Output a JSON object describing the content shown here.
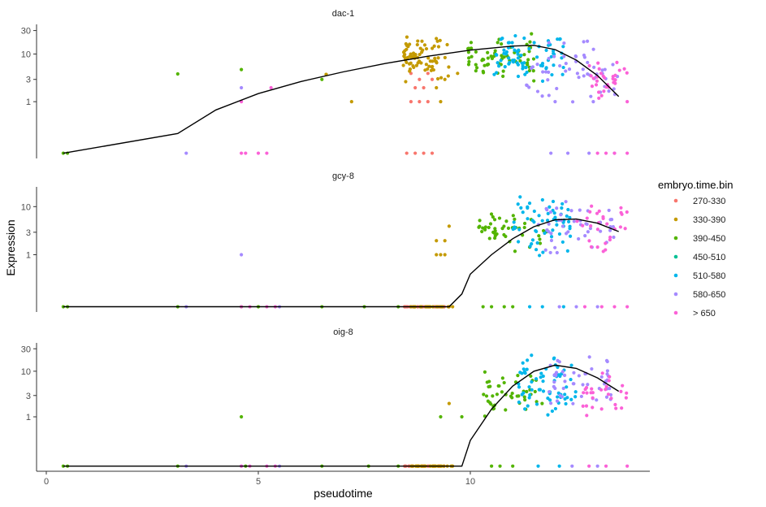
{
  "chart_data": {
    "type": "scatter",
    "xlabel": "pseudotime",
    "ylabel": "Expression",
    "xlim": [
      -0.5,
      14.1
    ],
    "x_ticks": [
      0,
      5,
      10
    ],
    "y_scale": "log10(y+0.1)",
    "legend": {
      "title": "embryo.time.bin",
      "position": "right",
      "entries": [
        {
          "label": "270-330",
          "color": "#F8766D"
        },
        {
          "label": "330-390",
          "color": "#C49A00"
        },
        {
          "label": "390-450",
          "color": "#53B400"
        },
        {
          "label": "450-510",
          "color": "#00C094"
        },
        {
          "label": "510-580",
          "color": "#00B6EB"
        },
        {
          "label": "580-650",
          "color": "#A58AFF"
        },
        {
          "label": "> 650",
          "color": "#FB61D7"
        }
      ]
    },
    "panels": [
      {
        "name": "dac-1",
        "y_ticks": [
          1,
          3,
          10,
          30
        ],
        "ylim": [
          0,
          40
        ],
        "trend": {
          "x": [
            0.4,
            3.1,
            4.0,
            5.0,
            6.0,
            7.0,
            8.0,
            9.0,
            10.0,
            11.0,
            11.5,
            12.0,
            12.5,
            13.0,
            13.5
          ],
          "y": [
            0.0,
            0.15,
            0.65,
            1.5,
            2.7,
            4.3,
            6.4,
            9.0,
            12.0,
            14.5,
            15.0,
            12.3,
            7.5,
            3.6,
            1.3
          ]
        },
        "clusters": [
          {
            "bin": "390-450",
            "points": [
              [
                0.4,
                0
              ],
              [
                0.5,
                0
              ],
              [
                3.1,
                3.9
              ],
              [
                4.6,
                4.8
              ],
              [
                6.5,
                3.0
              ],
              [
                6.6,
                3.8
              ]
            ]
          },
          {
            "bin": "580-650",
            "points": [
              [
                3.3,
                0
              ],
              [
                4.6,
                2.0
              ]
            ]
          },
          {
            "bin": "> 650",
            "points": [
              [
                4.6,
                0
              ],
              [
                4.7,
                0
              ],
              [
                4.6,
                1.0
              ],
              [
                5.0,
                0
              ],
              [
                5.2,
                0
              ],
              [
                5.3,
                2.0
              ]
            ]
          },
          {
            "bin": "330-390",
            "points": [
              [
                7.2,
                1.0
              ],
              [
                6.6,
                3.8
              ]
            ]
          },
          {
            "bin": "270-330",
            "points": [
              [
                8.5,
                0
              ],
              [
                8.7,
                0
              ],
              [
                8.9,
                0
              ],
              [
                9.1,
                0
              ],
              [
                8.6,
                1.0
              ],
              [
                8.8,
                1.0
              ],
              [
                9.0,
                1.0
              ],
              [
                8.7,
                2.0
              ],
              [
                8.9,
                2.0
              ],
              [
                8.8,
                3.0
              ],
              [
                9.1,
                3.0
              ],
              [
                8.6,
                4.0
              ],
              [
                9.0,
                4.0
              ]
            ]
          },
          {
            "bin": "330-390",
            "cluster": {
              "x": [
                8.4,
                9.5
              ],
              "y": [
                2.5,
                27
              ],
              "n": 75,
              "seed": 11
            }
          },
          {
            "bin": "330-390",
            "points": [
              [
                9.3,
                1.0
              ],
              [
                9.2,
                2.0
              ],
              [
                9.4,
                3.0
              ],
              [
                9.7,
                4.0
              ]
            ]
          },
          {
            "bin": "390-450",
            "cluster": {
              "x": [
                9.9,
                11.5
              ],
              "y": [
                2.5,
                28
              ],
              "n": 65,
              "seed": 23
            }
          },
          {
            "bin": "510-580",
            "cluster": {
              "x": [
                10.5,
                12.2
              ],
              "y": [
                2.5,
                30
              ],
              "n": 75,
              "seed": 37
            }
          },
          {
            "bin": "580-650",
            "cluster": {
              "x": [
                11.3,
                13.5
              ],
              "y": [
                0.9,
                20
              ],
              "n": 55,
              "seed": 41
            }
          },
          {
            "bin": "580-650",
            "points": [
              [
                11.9,
                0
              ],
              [
                12.3,
                0
              ],
              [
                12.8,
                0
              ],
              [
                13.4,
                0
              ],
              [
                12.0,
                1.0
              ],
              [
                12.9,
                1.0
              ]
            ]
          },
          {
            "bin": "> 650",
            "cluster": {
              "x": [
                12.8,
                13.7
              ],
              "y": [
                0.9,
                14
              ],
              "n": 30,
              "seed": 53
            }
          },
          {
            "bin": "> 650",
            "points": [
              [
                13.0,
                0
              ],
              [
                13.2,
                0
              ],
              [
                13.4,
                0
              ],
              [
                13.7,
                0
              ],
              [
                13.7,
                1.0
              ]
            ]
          }
        ]
      },
      {
        "name": "gcy-8",
        "y_ticks": [
          1,
          3,
          10
        ],
        "ylim": [
          0,
          25
        ],
        "trend": {
          "x": [
            0.4,
            9.5,
            9.8,
            10.0,
            10.5,
            11.0,
            11.5,
            12.0,
            12.5,
            13.0,
            13.5
          ],
          "y": [
            0,
            0,
            0.08,
            0.35,
            1.0,
            2.2,
            3.9,
            5.4,
            5.6,
            4.6,
            3.1
          ]
        },
        "clusters": [
          {
            "bin": "390-450",
            "points": [
              [
                0.4,
                0
              ],
              [
                0.5,
                0
              ],
              [
                3.1,
                0
              ],
              [
                4.6,
                0
              ],
              [
                5.0,
                0
              ],
              [
                6.5,
                0
              ],
              [
                7.5,
                0
              ],
              [
                8.3,
                0
              ]
            ]
          },
          {
            "bin": "580-650",
            "points": [
              [
                3.3,
                0
              ],
              [
                4.6,
                1.0
              ],
              [
                5.5,
                0
              ]
            ]
          },
          {
            "bin": "> 650",
            "points": [
              [
                4.6,
                0
              ],
              [
                4.8,
                0
              ],
              [
                5.2,
                0
              ],
              [
                5.4,
                0
              ]
            ]
          },
          {
            "bin": "270-330",
            "cluster": {
              "x": [
                8.4,
                9.4
              ],
              "y": [
                0,
                0.05
              ],
              "n": 30,
              "seed": 7
            }
          },
          {
            "bin": "330-390",
            "cluster": {
              "x": [
                8.6,
                9.6
              ],
              "y": [
                0,
                0.05
              ],
              "n": 30,
              "seed": 9
            }
          },
          {
            "bin": "330-390",
            "points": [
              [
                9.2,
                1.0
              ],
              [
                9.3,
                1.0
              ],
              [
                9.4,
                1.0
              ],
              [
                9.2,
                2.0
              ],
              [
                9.4,
                2.0
              ],
              [
                9.5,
                4.0
              ]
            ]
          },
          {
            "bin": "390-450",
            "cluster": {
              "x": [
                10.2,
                11.8
              ],
              "y": [
                0.9,
                10
              ],
              "n": 45,
              "seed": 19
            }
          },
          {
            "bin": "390-450",
            "points": [
              [
                10.3,
                0
              ],
              [
                10.5,
                0
              ],
              [
                10.8,
                0
              ],
              [
                11.0,
                0
              ]
            ]
          },
          {
            "bin": "510-580",
            "cluster": {
              "x": [
                11.0,
                12.4
              ],
              "y": [
                0.9,
                18
              ],
              "n": 60,
              "seed": 29
            }
          },
          {
            "bin": "510-580",
            "points": [
              [
                11.4,
                0
              ],
              [
                11.7,
                0
              ],
              [
                12.2,
                0
              ]
            ]
          },
          {
            "bin": "580-650",
            "cluster": {
              "x": [
                11.6,
                13.4
              ],
              "y": [
                0.9,
                16
              ],
              "n": 45,
              "seed": 31
            }
          },
          {
            "bin": "580-650",
            "points": [
              [
                12.1,
                0
              ],
              [
                12.5,
                0
              ],
              [
                13.0,
                0
              ]
            ]
          },
          {
            "bin": "> 650",
            "cluster": {
              "x": [
                12.5,
                13.7
              ],
              "y": [
                0.9,
                15
              ],
              "n": 28,
              "seed": 47
            }
          },
          {
            "bin": "> 650",
            "points": [
              [
                12.7,
                0
              ],
              [
                13.1,
                0
              ],
              [
                13.4,
                0
              ],
              [
                13.7,
                0
              ]
            ]
          }
        ]
      },
      {
        "name": "oig-8",
        "y_ticks": [
          1,
          3,
          10,
          30
        ],
        "ylim": [
          0,
          40
        ],
        "trend": {
          "x": [
            0.4,
            9.8,
            10.0,
            10.5,
            11.0,
            11.5,
            12.0,
            12.5,
            13.0,
            13.5
          ],
          "y": [
            0,
            0,
            0.25,
            1.5,
            4.8,
            10.0,
            13.5,
            11.5,
            7.2,
            3.7
          ]
        },
        "clusters": [
          {
            "bin": "390-450",
            "points": [
              [
                0.4,
                0
              ],
              [
                0.5,
                0
              ],
              [
                3.1,
                0
              ],
              [
                4.6,
                1.0
              ],
              [
                4.7,
                0
              ],
              [
                6.5,
                0
              ],
              [
                7.6,
                0
              ],
              [
                8.3,
                0
              ],
              [
                9.3,
                1.0
              ],
              [
                9.8,
                1.0
              ]
            ]
          },
          {
            "bin": "580-650",
            "points": [
              [
                3.3,
                0
              ],
              [
                4.6,
                0
              ],
              [
                5.5,
                0
              ]
            ]
          },
          {
            "bin": "> 650",
            "points": [
              [
                4.6,
                0
              ],
              [
                4.8,
                0
              ],
              [
                5.2,
                0
              ],
              [
                5.4,
                0
              ]
            ]
          },
          {
            "bin": "270-330",
            "cluster": {
              "x": [
                8.4,
                9.4
              ],
              "y": [
                0,
                0.05
              ],
              "n": 30,
              "seed": 5
            }
          },
          {
            "bin": "330-390",
            "cluster": {
              "x": [
                8.6,
                9.6
              ],
              "y": [
                0,
                0.05
              ],
              "n": 30,
              "seed": 13
            }
          },
          {
            "bin": "330-390",
            "points": [
              [
                9.5,
                2.0
              ]
            ]
          },
          {
            "bin": "390-450",
            "cluster": {
              "x": [
                10.3,
                11.8
              ],
              "y": [
                0.9,
                12
              ],
              "n": 45,
              "seed": 17
            }
          },
          {
            "bin": "390-450",
            "points": [
              [
                10.5,
                0
              ],
              [
                10.7,
                0
              ],
              [
                11.0,
                0
              ]
            ]
          },
          {
            "bin": "510-580",
            "cluster": {
              "x": [
                11.1,
                12.5
              ],
              "y": [
                0.9,
                32
              ],
              "n": 65,
              "seed": 27
            }
          },
          {
            "bin": "510-580",
            "points": [
              [
                11.6,
                0
              ],
              [
                12.1,
                0
              ]
            ]
          },
          {
            "bin": "580-650",
            "cluster": {
              "x": [
                11.8,
                13.4
              ],
              "y": [
                1.5,
                30
              ],
              "n": 50,
              "seed": 33
            }
          },
          {
            "bin": "580-650",
            "points": [
              [
                12.4,
                0
              ],
              [
                13.0,
                0
              ]
            ]
          },
          {
            "bin": "> 650",
            "cluster": {
              "x": [
                12.6,
                13.7
              ],
              "y": [
                0.9,
                12
              ],
              "n": 28,
              "seed": 43
            }
          },
          {
            "bin": "> 650",
            "points": [
              [
                12.8,
                0
              ],
              [
                13.2,
                0
              ],
              [
                13.7,
                0
              ]
            ]
          }
        ]
      }
    ]
  }
}
